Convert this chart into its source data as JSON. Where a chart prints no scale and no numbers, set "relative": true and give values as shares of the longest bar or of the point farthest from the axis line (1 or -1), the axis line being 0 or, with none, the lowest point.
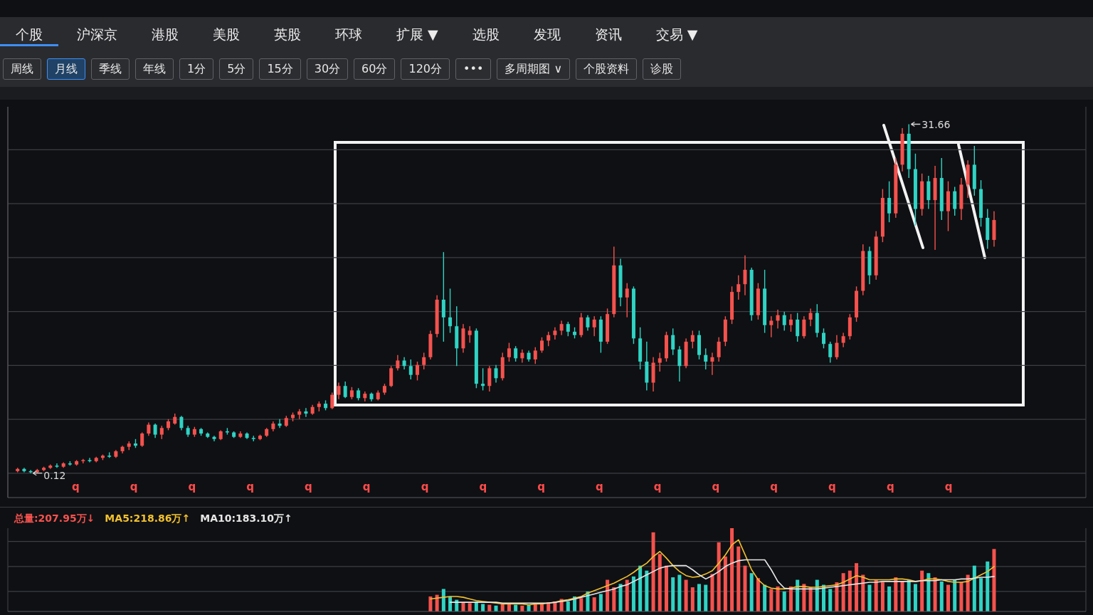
{
  "chart_data": [
    {
      "type": "other",
      "annotations": [
        "个股",
        "沪深京",
        "港股",
        "美股",
        "英股",
        "环球",
        "扩展 ▼",
        "选股",
        "发现",
        "资讯",
        "交易 ▼"
      ]
    },
    {
      "type": "other",
      "annotations": [
        "周线",
        "月线",
        "季线",
        "年线",
        "1分",
        "5分",
        "15分",
        "30分",
        "60分",
        "120分",
        "•••",
        "多周期图 ∨",
        "个股资料",
        "诊股"
      ]
    },
    {
      "type": "candlestick",
      "categories": [
        null,
        null,
        null,
        null,
        null,
        null,
        null,
        null,
        null,
        null,
        null,
        null,
        null,
        null,
        null,
        null,
        null,
        null,
        null,
        null,
        null,
        null,
        null,
        null,
        null,
        null,
        null,
        null,
        null,
        null,
        null,
        null,
        null,
        null,
        null,
        null,
        null,
        null,
        null,
        null,
        null,
        null,
        null,
        null,
        null,
        null,
        null,
        null,
        null,
        null,
        null,
        null,
        null,
        null,
        null,
        null,
        null,
        null,
        null,
        null,
        null,
        null,
        null,
        null,
        null,
        null,
        null,
        null,
        null,
        null,
        null,
        null,
        null,
        null,
        null,
        null,
        null,
        null,
        null,
        null,
        null,
        null,
        null,
        null,
        null,
        null,
        null,
        null,
        null,
        null,
        null,
        null,
        null,
        null,
        null,
        null,
        null,
        null,
        null,
        null,
        null,
        null,
        null,
        null,
        null,
        null,
        null,
        null,
        null,
        null,
        null,
        null,
        null,
        null,
        null,
        null,
        null,
        null,
        null,
        null,
        null,
        null,
        null,
        null,
        null,
        null,
        null,
        null,
        null,
        null,
        null,
        null,
        null,
        null,
        null,
        null,
        null,
        null,
        null,
        null,
        null,
        null,
        null,
        null,
        null,
        null,
        null,
        null,
        null,
        null
      ],
      "ohlc": [
        [
          0.3,
          0.6,
          0.2,
          0.5
        ],
        [
          0.5,
          0.6,
          0.2,
          0.3
        ],
        [
          0.3,
          0.4,
          0.12,
          0.2
        ],
        [
          0.2,
          0.5,
          0.15,
          0.4
        ],
        [
          0.4,
          0.7,
          0.3,
          0.6
        ],
        [
          0.6,
          0.9,
          0.5,
          0.8
        ],
        [
          0.8,
          1.0,
          0.6,
          0.7
        ],
        [
          0.7,
          1.1,
          0.6,
          1.0
        ],
        [
          1.0,
          1.2,
          0.8,
          0.9
        ],
        [
          0.9,
          1.3,
          0.8,
          1.2
        ],
        [
          1.2,
          1.4,
          1.0,
          1.3
        ],
        [
          1.3,
          1.5,
          1.1,
          1.2
        ],
        [
          1.2,
          1.6,
          1.1,
          1.5
        ],
        [
          1.5,
          1.8,
          1.3,
          1.7
        ],
        [
          1.7,
          2.0,
          1.5,
          1.6
        ],
        [
          1.6,
          2.2,
          1.5,
          2.1
        ],
        [
          2.1,
          2.6,
          1.9,
          2.5
        ],
        [
          2.5,
          3.0,
          2.2,
          2.8
        ],
        [
          2.8,
          3.2,
          2.4,
          2.6
        ],
        [
          2.6,
          3.8,
          2.5,
          3.7
        ],
        [
          3.7,
          4.7,
          3.5,
          4.5
        ],
        [
          4.5,
          4.6,
          3.3,
          3.6
        ],
        [
          3.6,
          4.4,
          3.2,
          4.2
        ],
        [
          4.2,
          5.0,
          4.0,
          4.8
        ],
        [
          4.6,
          5.5,
          4.5,
          5.2
        ],
        [
          5.2,
          5.3,
          4.0,
          4.2
        ],
        [
          4.2,
          4.4,
          3.4,
          3.6
        ],
        [
          3.6,
          4.3,
          3.4,
          4.1
        ],
        [
          4.1,
          4.2,
          3.5,
          3.7
        ],
        [
          3.7,
          3.8,
          3.3,
          3.4
        ],
        [
          3.4,
          3.5,
          3.0,
          3.2
        ],
        [
          3.2,
          4.0,
          3.1,
          3.9
        ],
        [
          3.9,
          4.2,
          3.6,
          3.8
        ],
        [
          3.8,
          3.9,
          3.3,
          3.4
        ],
        [
          3.4,
          3.9,
          3.3,
          3.7
        ],
        [
          3.7,
          3.8,
          3.2,
          3.3
        ],
        [
          3.3,
          3.5,
          3.0,
          3.2
        ],
        [
          3.2,
          3.6,
          3.1,
          3.5
        ],
        [
          3.5,
          4.2,
          3.4,
          4.1
        ],
        [
          4.1,
          4.8,
          3.9,
          4.6
        ],
        [
          4.6,
          5.0,
          4.2,
          4.4
        ],
        [
          4.4,
          5.3,
          4.3,
          5.1
        ],
        [
          5.1,
          5.6,
          4.8,
          5.4
        ],
        [
          5.4,
          5.9,
          5.0,
          5.7
        ],
        [
          5.7,
          6.0,
          5.2,
          5.5
        ],
        [
          5.5,
          6.3,
          5.4,
          6.1
        ],
        [
          6.1,
          6.6,
          5.7,
          6.4
        ],
        [
          6.4,
          6.7,
          5.8,
          6.0
        ],
        [
          6.0,
          7.4,
          5.9,
          7.2
        ],
        [
          7.2,
          8.3,
          6.8,
          8.0
        ],
        [
          8.0,
          8.4,
          6.9,
          7.0
        ],
        [
          7.0,
          7.9,
          6.8,
          7.6
        ],
        [
          7.6,
          7.8,
          6.7,
          6.9
        ],
        [
          6.9,
          7.5,
          6.6,
          7.3
        ],
        [
          7.3,
          7.4,
          6.6,
          6.8
        ],
        [
          6.8,
          7.6,
          6.7,
          7.4
        ],
        [
          7.4,
          8.2,
          7.2,
          8.0
        ],
        [
          8.0,
          9.8,
          7.9,
          9.6
        ],
        [
          9.6,
          10.8,
          9.4,
          10.3
        ],
        [
          10.3,
          10.6,
          9.5,
          9.8
        ],
        [
          9.8,
          10.4,
          8.6,
          9.0
        ],
        [
          9.0,
          10.2,
          8.5,
          9.9
        ],
        [
          9.9,
          11.0,
          9.5,
          10.6
        ],
        [
          10.6,
          13.0,
          10.4,
          12.7
        ],
        [
          12.7,
          16.2,
          12.4,
          15.8
        ],
        [
          15.8,
          20.1,
          12.0,
          14.2
        ],
        [
          14.2,
          16.8,
          12.8,
          13.4
        ],
        [
          13.4,
          15.2,
          9.8,
          11.4
        ],
        [
          11.4,
          13.6,
          11.0,
          13.2
        ],
        [
          12.6,
          13.4,
          11.9,
          13.0
        ],
        [
          13.0,
          13.2,
          7.8,
          8.2
        ],
        [
          8.2,
          9.6,
          7.6,
          8.0
        ],
        [
          8.0,
          9.8,
          7.5,
          9.6
        ],
        [
          9.6,
          9.9,
          8.3,
          8.7
        ],
        [
          8.7,
          11.0,
          8.5,
          10.6
        ],
        [
          10.6,
          11.9,
          10.2,
          11.4
        ],
        [
          11.4,
          11.6,
          10.2,
          10.5
        ],
        [
          10.5,
          11.3,
          10.1,
          11.0
        ],
        [
          11.0,
          11.2,
          10.2,
          10.4
        ],
        [
          10.4,
          11.5,
          10.0,
          11.2
        ],
        [
          11.2,
          12.4,
          11.0,
          12.1
        ],
        [
          12.1,
          12.9,
          11.6,
          12.6
        ],
        [
          12.6,
          13.3,
          12.2,
          13.0
        ],
        [
          13.0,
          13.9,
          12.6,
          13.6
        ],
        [
          13.6,
          13.8,
          12.5,
          12.9
        ],
        [
          12.9,
          13.3,
          12.3,
          12.6
        ],
        [
          12.6,
          14.6,
          12.4,
          14.2
        ],
        [
          14.2,
          14.4,
          13.0,
          13.3
        ],
        [
          13.3,
          14.3,
          12.5,
          14.0
        ],
        [
          14.0,
          14.3,
          11.0,
          12.0
        ],
        [
          12.0,
          15.0,
          11.8,
          14.5
        ],
        [
          14.5,
          20.6,
          14.2,
          18.9
        ],
        [
          18.9,
          19.5,
          15.2,
          16.0
        ],
        [
          16.0,
          17.3,
          14.2,
          16.8
        ],
        [
          16.8,
          17.0,
          11.8,
          12.3
        ],
        [
          12.3,
          13.3,
          9.5,
          10.2
        ],
        [
          10.2,
          12.0,
          7.6,
          8.3
        ],
        [
          8.3,
          10.6,
          7.5,
          10.1
        ],
        [
          10.1,
          11.0,
          9.3,
          10.5
        ],
        [
          10.5,
          12.9,
          10.2,
          12.6
        ],
        [
          12.6,
          13.2,
          10.8,
          11.3
        ],
        [
          11.3,
          11.6,
          8.4,
          9.8
        ],
        [
          9.8,
          12.3,
          9.6,
          12.0
        ],
        [
          12.0,
          13.0,
          11.4,
          12.6
        ],
        [
          12.6,
          13.0,
          10.4,
          10.8
        ],
        [
          10.8,
          11.4,
          9.5,
          10.2
        ],
        [
          10.2,
          11.0,
          9.0,
          10.6
        ],
        [
          10.6,
          12.4,
          10.2,
          12.0
        ],
        [
          12.0,
          14.3,
          11.6,
          14.0
        ],
        [
          14.0,
          17.0,
          13.6,
          16.5
        ],
        [
          16.5,
          18.0,
          15.8,
          17.2
        ],
        [
          17.2,
          19.8,
          16.2,
          18.5
        ],
        [
          18.5,
          18.7,
          13.9,
          14.4
        ],
        [
          14.4,
          17.3,
          14.0,
          16.8
        ],
        [
          16.8,
          18.5,
          12.8,
          13.5
        ],
        [
          13.5,
          14.3,
          12.4,
          13.9
        ],
        [
          13.9,
          14.9,
          13.2,
          14.4
        ],
        [
          14.4,
          14.7,
          13.0,
          13.5
        ],
        [
          13.5,
          14.5,
          12.9,
          14.0
        ],
        [
          14.0,
          14.6,
          12.0,
          12.5
        ],
        [
          12.5,
          14.3,
          12.3,
          14.0
        ],
        [
          14.0,
          15.0,
          13.4,
          14.6
        ],
        [
          14.6,
          15.4,
          12.4,
          12.8
        ],
        [
          12.8,
          13.2,
          11.4,
          11.8
        ],
        [
          11.8,
          12.0,
          10.1,
          10.6
        ],
        [
          10.6,
          12.6,
          10.4,
          11.9
        ],
        [
          11.9,
          12.8,
          11.5,
          12.5
        ],
        [
          12.5,
          14.5,
          12.2,
          14.2
        ],
        [
          14.2,
          17.0,
          13.8,
          16.6
        ],
        [
          16.6,
          20.8,
          16.2,
          20.2
        ],
        [
          20.2,
          20.6,
          17.2,
          18.0
        ],
        [
          18.0,
          22.0,
          17.6,
          21.5
        ],
        [
          21.5,
          25.8,
          21.0,
          25.0
        ],
        [
          25.0,
          26.5,
          22.8,
          23.6
        ],
        [
          23.6,
          28.6,
          23.2,
          28.0
        ],
        [
          28.0,
          31.3,
          27.4,
          30.8
        ],
        [
          30.8,
          31.66,
          26.8,
          27.6
        ],
        [
          27.6,
          29.0,
          22.5,
          24.0
        ],
        [
          24.0,
          27.2,
          23.4,
          26.5
        ],
        [
          26.5,
          27.0,
          24.0,
          24.8
        ],
        [
          24.8,
          27.9,
          20.3,
          26.8
        ],
        [
          26.8,
          28.6,
          23.0,
          23.8
        ],
        [
          23.8,
          26.5,
          22.0,
          25.6
        ],
        [
          25.6,
          26.0,
          23.4,
          24.0
        ],
        [
          24.0,
          26.8,
          23.0,
          26.2
        ],
        [
          26.2,
          28.4,
          25.0,
          28.0
        ],
        [
          28.0,
          29.7,
          25.2,
          25.8
        ],
        [
          25.8,
          26.6,
          22.4,
          23.2
        ],
        [
          23.2,
          24.0,
          20.4,
          21.2
        ],
        [
          21.2,
          23.8,
          20.6,
          23.0
        ]
      ],
      "colors": [
        "#f5524e",
        "#2fd3c4",
        "#2fd3c4",
        "#f5524e",
        "#f5524e",
        "#f5524e",
        "#2fd3c4",
        "#f5524e",
        "#2fd3c4",
        "#f5524e",
        "#f5524e",
        "#2fd3c4",
        "#f5524e",
        "#f5524e",
        "#2fd3c4",
        "#f5524e",
        "#f5524e",
        "#f5524e",
        "#2fd3c4",
        "#f5524e",
        "#f5524e",
        "#2fd3c4",
        "#f5524e",
        "#f5524e",
        "#f5524e",
        "#2fd3c4",
        "#2fd3c4",
        "#f5524e",
        "#2fd3c4",
        "#2fd3c4",
        "#2fd3c4",
        "#f5524e",
        "#2fd3c4",
        "#2fd3c4",
        "#f5524e",
        "#2fd3c4",
        "#2fd3c4",
        "#f5524e",
        "#f5524e",
        "#f5524e",
        "#2fd3c4",
        "#f5524e",
        "#f5524e",
        "#f5524e",
        "#2fd3c4",
        "#f5524e",
        "#f5524e",
        "#2fd3c4",
        "#f5524e",
        "#f5524e",
        "#2fd3c4",
        "#f5524e",
        "#2fd3c4",
        "#f5524e",
        "#2fd3c4",
        "#f5524e",
        "#f5524e",
        "#f5524e",
        "#f5524e",
        "#2fd3c4",
        "#2fd3c4",
        "#f5524e",
        "#f5524e",
        "#f5524e",
        "#f5524e",
        "#2fd3c4",
        "#2fd3c4",
        "#2fd3c4",
        "#f5524e",
        "#f5524e",
        "#2fd3c4",
        "#2fd3c4",
        "#f5524e",
        "#2fd3c4",
        "#f5524e",
        "#f5524e",
        "#2fd3c4",
        "#f5524e",
        "#2fd3c4",
        "#f5524e",
        "#f5524e",
        "#f5524e",
        "#f5524e",
        "#f5524e",
        "#2fd3c4",
        "#2fd3c4",
        "#f5524e",
        "#2fd3c4",
        "#f5524e",
        "#2fd3c4",
        "#f5524e",
        "#f5524e",
        "#2fd3c4",
        "#f5524e",
        "#2fd3c4",
        "#2fd3c4",
        "#2fd3c4",
        "#f5524e",
        "#f5524e",
        "#f5524e",
        "#2fd3c4",
        "#2fd3c4",
        "#f5524e",
        "#f5524e",
        "#2fd3c4",
        "#2fd3c4",
        "#f5524e",
        "#f5524e",
        "#f5524e",
        "#f5524e",
        "#f5524e",
        "#f5524e",
        "#2fd3c4",
        "#f5524e",
        "#2fd3c4",
        "#f5524e",
        "#f5524e",
        "#2fd3c4",
        "#f5524e",
        "#2fd3c4",
        "#f5524e",
        "#f5524e",
        "#2fd3c4",
        "#2fd3c4",
        "#2fd3c4",
        "#f5524e",
        "#f5524e",
        "#f5524e",
        "#f5524e",
        "#f5524e",
        "#2fd3c4",
        "#f5524e",
        "#f5524e",
        "#2fd3c4",
        "#f5524e",
        "#f5524e",
        "#2fd3c4",
        "#2fd3c4",
        "#f5524e",
        "#2fd3c4",
        "#f5524e",
        "#2fd3c4",
        "#f5524e",
        "#2fd3c4",
        "#f5524e",
        "#f5524e",
        "#2fd3c4",
        "#2fd3c4",
        "#2fd3c4",
        "#f5524e"
      ],
      "annotations": [
        "31.66",
        "0.12",
        "q",
        "q",
        "q",
        "q",
        "q",
        "q",
        "q",
        "q",
        "q",
        "q",
        "q",
        "q",
        "q",
        "q",
        "q",
        "q"
      ],
      "grid": true,
      "tick_labels": false
    },
    {
      "type": "bar",
      "categories": [
        null,
        null,
        null,
        null,
        null,
        null,
        null,
        null,
        null,
        null,
        null,
        null,
        null,
        null,
        null,
        null,
        null,
        null,
        null,
        null,
        null,
        null,
        null,
        null,
        null,
        null,
        null,
        null,
        null,
        null,
        null,
        null,
        null,
        null,
        null,
        null,
        null,
        null,
        null,
        null,
        null,
        null,
        null,
        null,
        null,
        null,
        null,
        null,
        null,
        null,
        null,
        null,
        null,
        null,
        null,
        null,
        null,
        null,
        null,
        null,
        null,
        null,
        null,
        null,
        null,
        null,
        null,
        null,
        null,
        null,
        null,
        null,
        null,
        null,
        null,
        null,
        null,
        null,
        null,
        null,
        null,
        null,
        null,
        null,
        null,
        null,
        null,
        null,
        null,
        null,
        null,
        null,
        null,
        null,
        null,
        null,
        null,
        null,
        null,
        null,
        null,
        null,
        null,
        null,
        null,
        null,
        null,
        null,
        null,
        null,
        null,
        null,
        null,
        null,
        null,
        null,
        null,
        null,
        null,
        null,
        null,
        null,
        null,
        null,
        null,
        null,
        null,
        null,
        null,
        null,
        null,
        null,
        null,
        null,
        null,
        null,
        null,
        null,
        null,
        null,
        null,
        null,
        null,
        null,
        null,
        null,
        null,
        null,
        null,
        null
      ],
      "relative": true,
      "series": [
        {
          "name": "总量:207.95万↓",
          "color": "#f5524e",
          "colors": [
            null,
            null,
            null,
            null,
            null,
            null,
            null,
            null,
            null,
            null,
            null,
            null,
            null,
            null,
            null,
            null,
            null,
            null,
            null,
            null,
            null,
            null,
            null,
            null,
            null,
            null,
            null,
            null,
            null,
            null,
            null,
            null,
            null,
            null,
            null,
            null,
            null,
            null,
            null,
            null,
            null,
            null,
            null,
            null,
            null,
            null,
            null,
            null,
            null,
            null,
            null,
            null,
            null,
            null,
            null,
            null,
            null,
            null,
            null,
            null,
            null,
            null,
            null,
            "#f5524e",
            "#f5524e",
            "#2fd3c4",
            "#2fd3c4",
            "#2fd3c4",
            "#f5524e",
            "#f5524e",
            "#2fd3c4",
            "#2fd3c4",
            "#f5524e",
            "#2fd3c4",
            "#f5524e",
            "#f5524e",
            "#2fd3c4",
            "#f5524e",
            "#2fd3c4",
            "#f5524e",
            "#f5524e",
            "#f5524e",
            "#f5524e",
            "#f5524e",
            "#2fd3c4",
            "#2fd3c4",
            "#f5524e",
            "#2fd3c4",
            "#f5524e",
            "#2fd3c4",
            "#f5524e",
            "#f5524e",
            "#2fd3c4",
            "#f5524e",
            "#2fd3c4",
            "#2fd3c4",
            "#2fd3c4",
            "#f5524e",
            "#f5524e",
            "#f5524e",
            "#2fd3c4",
            "#2fd3c4",
            "#f5524e",
            "#f5524e",
            "#2fd3c4",
            "#2fd3c4",
            "#f5524e",
            "#f5524e",
            "#f5524e",
            "#f5524e",
            "#f5524e",
            "#f5524e",
            "#2fd3c4",
            "#f5524e",
            "#2fd3c4",
            "#f5524e",
            "#f5524e",
            "#2fd3c4",
            "#f5524e",
            "#2fd3c4",
            "#f5524e",
            "#f5524e",
            "#2fd3c4",
            "#2fd3c4",
            "#2fd3c4",
            "#f5524e",
            "#f5524e",
            "#f5524e",
            "#f5524e",
            "#f5524e",
            "#2fd3c4",
            "#f5524e",
            "#f5524e",
            "#2fd3c4",
            "#f5524e",
            "#f5524e",
            "#2fd3c4",
            "#2fd3c4",
            "#f5524e",
            "#2fd3c4",
            "#f5524e",
            "#2fd3c4",
            "#f5524e",
            "#2fd3c4",
            "#f5524e",
            "#f5524e",
            "#2fd3c4",
            "#2fd3c4",
            "#2fd3c4",
            "#f5524e"
          ],
          "values": [
            null,
            null,
            null,
            null,
            null,
            null,
            null,
            null,
            null,
            null,
            null,
            null,
            null,
            null,
            null,
            null,
            null,
            null,
            null,
            null,
            null,
            null,
            null,
            null,
            null,
            null,
            null,
            null,
            null,
            null,
            null,
            null,
            null,
            null,
            null,
            null,
            null,
            null,
            null,
            null,
            null,
            null,
            null,
            null,
            null,
            null,
            null,
            null,
            null,
            null,
            null,
            null,
            null,
            null,
            null,
            null,
            null,
            null,
            null,
            null,
            null,
            null,
            null,
            0.18,
            0.2,
            0.27,
            0.18,
            0.14,
            0.11,
            0.1,
            0.12,
            0.09,
            0.08,
            0.07,
            0.09,
            0.1,
            0.08,
            0.07,
            0.08,
            0.09,
            0.1,
            0.11,
            0.12,
            0.15,
            0.12,
            0.18,
            0.16,
            0.24,
            0.17,
            0.21,
            0.38,
            0.29,
            0.33,
            0.38,
            0.42,
            0.55,
            0.49,
            0.95,
            0.69,
            0.55,
            0.41,
            0.44,
            0.38,
            0.29,
            0.33,
            0.32,
            0.45,
            0.83,
            0.66,
            1,
            0.78,
            0.55,
            0.46,
            0.4,
            0.32,
            0.27,
            0.3,
            0.24,
            0.3,
            0.38,
            0.33,
            0.29,
            0.38,
            0.32,
            0.27,
            0.35,
            0.46,
            0.49,
            0.58,
            0.44,
            0.32,
            0.38,
            0.35,
            0.3,
            0.41,
            0.36,
            0.38,
            0.33,
            0.49,
            0.46,
            0.41,
            0.36,
            0.32,
            0.38,
            0.35,
            0.44,
            0.55,
            0.4,
            0.6,
            0.75
          ]
        },
        {
          "name": "MA5:218.86万↑",
          "type": "line",
          "color": "#f2c12e",
          "values": [
            null,
            null,
            null,
            null,
            null,
            null,
            null,
            null,
            null,
            null,
            null,
            null,
            null,
            null,
            null,
            null,
            null,
            null,
            null,
            null,
            null,
            null,
            null,
            null,
            null,
            null,
            null,
            null,
            null,
            null,
            null,
            null,
            null,
            null,
            null,
            null,
            null,
            null,
            null,
            null,
            null,
            null,
            null,
            null,
            null,
            null,
            null,
            null,
            null,
            null,
            null,
            null,
            null,
            null,
            null,
            null,
            null,
            null,
            null,
            null,
            null,
            null,
            null,
            0.15,
            0.16,
            0.17,
            0.18,
            0.18,
            0.17,
            0.15,
            0.13,
            0.12,
            0.11,
            0.1,
            0.09,
            0.09,
            0.09,
            0.09,
            0.08,
            0.09,
            0.09,
            0.1,
            0.11,
            0.13,
            0.14,
            0.16,
            0.18,
            0.22,
            0.25,
            0.28,
            0.31,
            0.34,
            0.38,
            0.42,
            0.47,
            0.53,
            0.58,
            0.66,
            0.72,
            0.64,
            0.55,
            0.48,
            0.43,
            0.41,
            0.42,
            0.45,
            0.49,
            0.58,
            0.68,
            0.8,
            0.86,
            0.68,
            0.5,
            0.38,
            0.31,
            0.28,
            0.27,
            0.27,
            0.28,
            0.3,
            0.3,
            0.29,
            0.29,
            0.3,
            0.31,
            0.32,
            0.35,
            0.39,
            0.43,
            0.41,
            0.38,
            0.38,
            0.38,
            0.38,
            0.39,
            0.39,
            0.38,
            0.36,
            0.37,
            0.39,
            0.39,
            0.38,
            0.36,
            0.35,
            0.35,
            0.36,
            0.4,
            0.44,
            0.48,
            0.54
          ]
        },
        {
          "name": "MA10:183.10万↑",
          "type": "line",
          "color": "#e6e6e6",
          "values": [
            null,
            null,
            null,
            null,
            null,
            null,
            null,
            null,
            null,
            null,
            null,
            null,
            null,
            null,
            null,
            null,
            null,
            null,
            null,
            null,
            null,
            null,
            null,
            null,
            null,
            null,
            null,
            null,
            null,
            null,
            null,
            null,
            null,
            null,
            null,
            null,
            null,
            null,
            null,
            null,
            null,
            null,
            null,
            null,
            null,
            null,
            null,
            null,
            null,
            null,
            null,
            null,
            null,
            null,
            null,
            null,
            null,
            null,
            null,
            null,
            null,
            null,
            null,
            null,
            null,
            null,
            0.11,
            0.11,
            0.11,
            0.11,
            0.11,
            0.11,
            0.11,
            0.11,
            0.1,
            0.1,
            0.1,
            0.1,
            0.1,
            0.1,
            0.1,
            0.1,
            0.11,
            0.12,
            0.13,
            0.15,
            0.17,
            0.19,
            0.21,
            0.23,
            0.25,
            0.27,
            0.3,
            0.32,
            0.36,
            0.4,
            0.44,
            0.48,
            0.52,
            0.54,
            0.55,
            0.55,
            0.55,
            0.5,
            0.44,
            0.39,
            0.43,
            0.48,
            0.54,
            0.58,
            0.61,
            0.62,
            0.62,
            0.62,
            0.62,
            0.5,
            0.36,
            0.28,
            0.27,
            0.27,
            0.27,
            0.27,
            0.27,
            0.28,
            0.29,
            0.3,
            0.31,
            0.32,
            0.33,
            0.34,
            0.35,
            0.35,
            0.36,
            0.36,
            0.36,
            0.36,
            0.36,
            0.36,
            0.37,
            0.37,
            0.37,
            0.38,
            0.38,
            0.38,
            0.39,
            0.39,
            0.4,
            0.41,
            0.41,
            0.42
          ]
        }
      ],
      "grid": true,
      "tick_labels": false
    }
  ]
}
